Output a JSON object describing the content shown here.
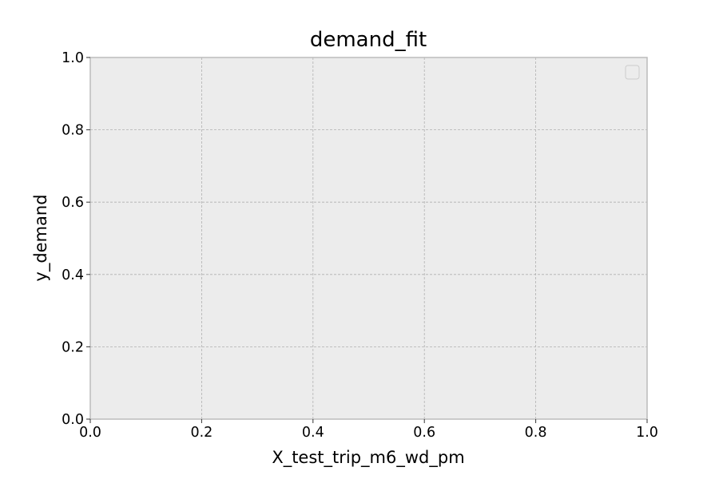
{
  "chart_data": {
    "type": "line",
    "title": "demand_fit",
    "xlabel": "X_test_trip_m6_wd_pm",
    "ylabel": "y_demand",
    "xlim": [
      0.0,
      1.0
    ],
    "ylim": [
      0.0,
      1.0
    ],
    "xticks": [
      "0.0",
      "0.2",
      "0.4",
      "0.6",
      "0.8",
      "1.0"
    ],
    "yticks": [
      "0.0",
      "0.2",
      "0.4",
      "0.6",
      "0.8",
      "1.0"
    ],
    "series": [],
    "grid": true,
    "legend": {
      "placement": "top-right",
      "entries": []
    },
    "colors": {
      "plot_background": "#ececec",
      "grid": "#b0b0b0",
      "spine": "#bcbcbc",
      "legend_border": "#cccccc"
    }
  }
}
